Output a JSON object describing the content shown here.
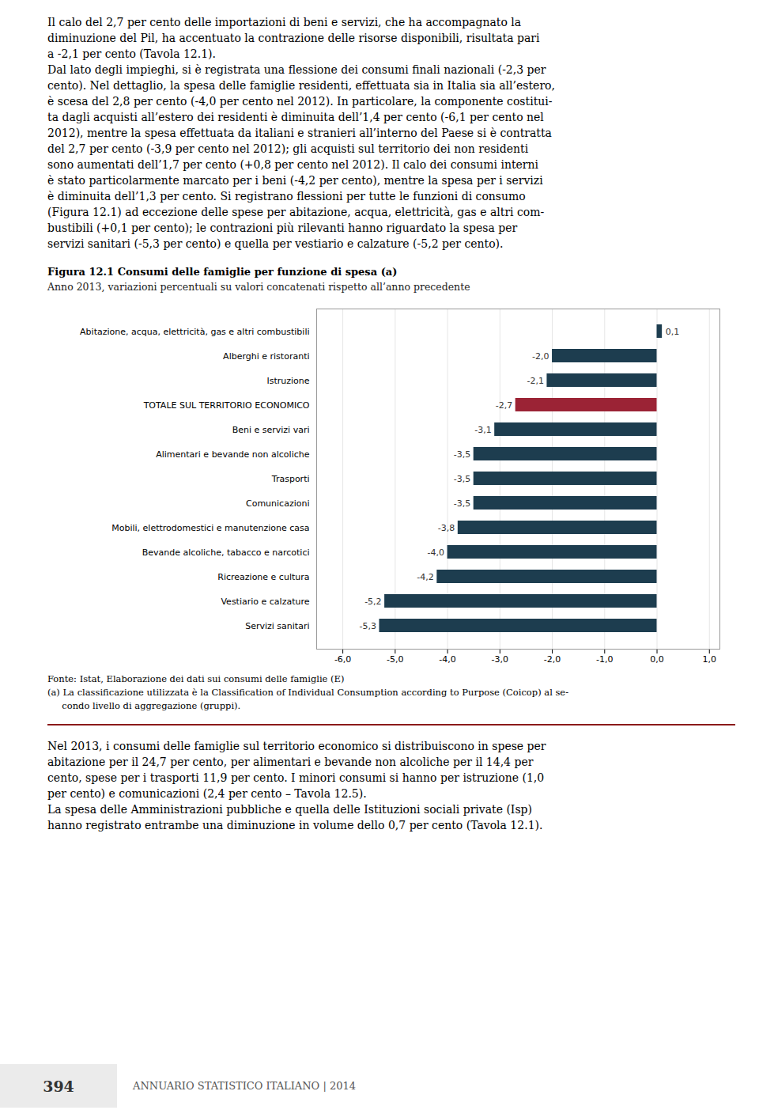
{
  "chart_data": {
    "type": "bar",
    "orientation": "horizontal",
    "title": "Figura 12.1 Consumi delle famiglie per funzione di spesa (a)",
    "subtitle": "Anno 2013, variazioni percentuali su valori concatenati rispetto all’anno precedente",
    "categories": [
      "Abitazione, acqua, elettricità, gas e altri combustibili",
      "Alberghi e ristoranti",
      "Istruzione",
      "TOTALE SUL TERRITORIO ECONOMICO",
      "Beni e servizi vari",
      "Alimentari e bevande non alcoliche",
      "Trasporti",
      "Comunicazioni",
      "Mobili, elettrodomestici e manutenzione casa",
      "Bevande alcoliche, tabacco e narcotici",
      "Ricreazione e cultura",
      "Vestiario e calzature",
      "Servizi sanitari"
    ],
    "values": [
      0.1,
      -2.0,
      -2.1,
      -2.7,
      -3.1,
      -3.5,
      -3.5,
      -3.5,
      -3.8,
      -4.0,
      -4.2,
      -5.2,
      -5.3
    ],
    "value_labels": [
      "0,1",
      "-2,0",
      "-2,1",
      "-2,7",
      "-3,1",
      "-3,5",
      "-3,5",
      "-3,5",
      "-3,8",
      "-4,0",
      "-4,2",
      "-5,2",
      "-5,3"
    ],
    "data_labels": true,
    "colors": [
      "#1d3d4f",
      "#1d3d4f",
      "#1d3d4f",
      "#9b2335",
      "#1d3d4f",
      "#1d3d4f",
      "#1d3d4f",
      "#1d3d4f",
      "#1d3d4f",
      "#1d3d4f",
      "#1d3d4f",
      "#1d3d4f",
      "#1d3d4f"
    ],
    "xlim": [
      -6.5,
      1.2
    ],
    "xticks": [
      {
        "value": -6.0,
        "label": "-6,0"
      },
      {
        "value": -5.0,
        "label": "-5,0"
      },
      {
        "value": -4.0,
        "label": "-4,0"
      },
      {
        "value": -3.0,
        "label": "-3,0"
      },
      {
        "value": -2.0,
        "label": "-2,0"
      },
      {
        "value": -1.0,
        "label": "-1,0"
      },
      {
        "value": 0.0,
        "label": "0,0"
      },
      {
        "value": 1.0,
        "label": "1,0"
      }
    ],
    "grid": true,
    "annotations": [
      "Fonte: Istat, Elaborazione dei dati sui consumi delle famiglie (E)",
      "(a) La classificazione utilizzata è la Classification of Individual Consumption according to Purpose (Coicop) al se-",
      "     condo livello di aggregazione (gruppi)."
    ]
  },
  "page_text_above": [
    "Il calo del 2,7 per cento delle importazioni di beni e servizi, che ha accompagnato la",
    "diminuzione del Pil, ha accentuato la contrazione delle risorse disponibili, risultata pari",
    "a -2,1 per cento (Tavola 12.1).",
    "Dal lato degli impieghi, si è registrata una flessione dei consumi finali nazionali (-2,3 per",
    "cento). Nel dettaglio, la spesa delle famiglie residenti, effettuata sia in Italia sia all’estero,",
    "è scesa del 2,8 per cento (-4,0 per cento nel 2012). In particolare, la componente costitui-",
    "ta dagli acquisti all’estero dei residenti è diminuita dell’1,4 per cento (-6,1 per cento nel",
    "2012), mentre la spesa effettuata da italiani e stranieri all’interno del Paese si è contratta",
    "del 2,7 per cento (-3,9 per cento nel 2012); gli acquisti sul territorio dei non residenti",
    "sono aumentati dell’1,7 per cento (+0,8 per cento nel 2012). Il calo dei consumi interni",
    "è stato particolarmente marcato per i beni (-4,2 per cento), mentre la spesa per i servizi",
    "è diminuita dell’1,3 per cento. Si registrano flessioni per tutte le funzioni di consumo",
    "(Figura 12.1) ad eccezione delle spese per abitazione, acqua, elettricità, gas e altri com-",
    "bustibili (+0,1 per cento); le contrazioni più rilevanti hanno riguardato la spesa per",
    "servizi sanitari (-5,3 per cento) e quella per vestiario e calzature (-5,2 per cento)."
  ],
  "page_text_below": [
    "Nel 2013, i consumi delle famiglie sul territorio economico si distribuiscono in spese per",
    "abitazione per il 24,7 per cento, per alimentari e bevande non alcoliche per il 14,4 per",
    "cento, spese per i trasporti 11,9 per cento. I minori consumi si hanno per istruzione (1,0",
    "per cento) e comunicazioni (2,4 per cento – Tavola 12.5).",
    "La spesa delle Amministrazioni pubbliche e quella delle Istituzioni sociali private (Isp)",
    "hanno registrato entrambe una diminuzione in volume dello 0,7 per cento (Tavola 12.1)."
  ],
  "page_footer": [
    "394",
    "ANNUARIO STATISTICO ITALIANO | 2014"
  ]
}
